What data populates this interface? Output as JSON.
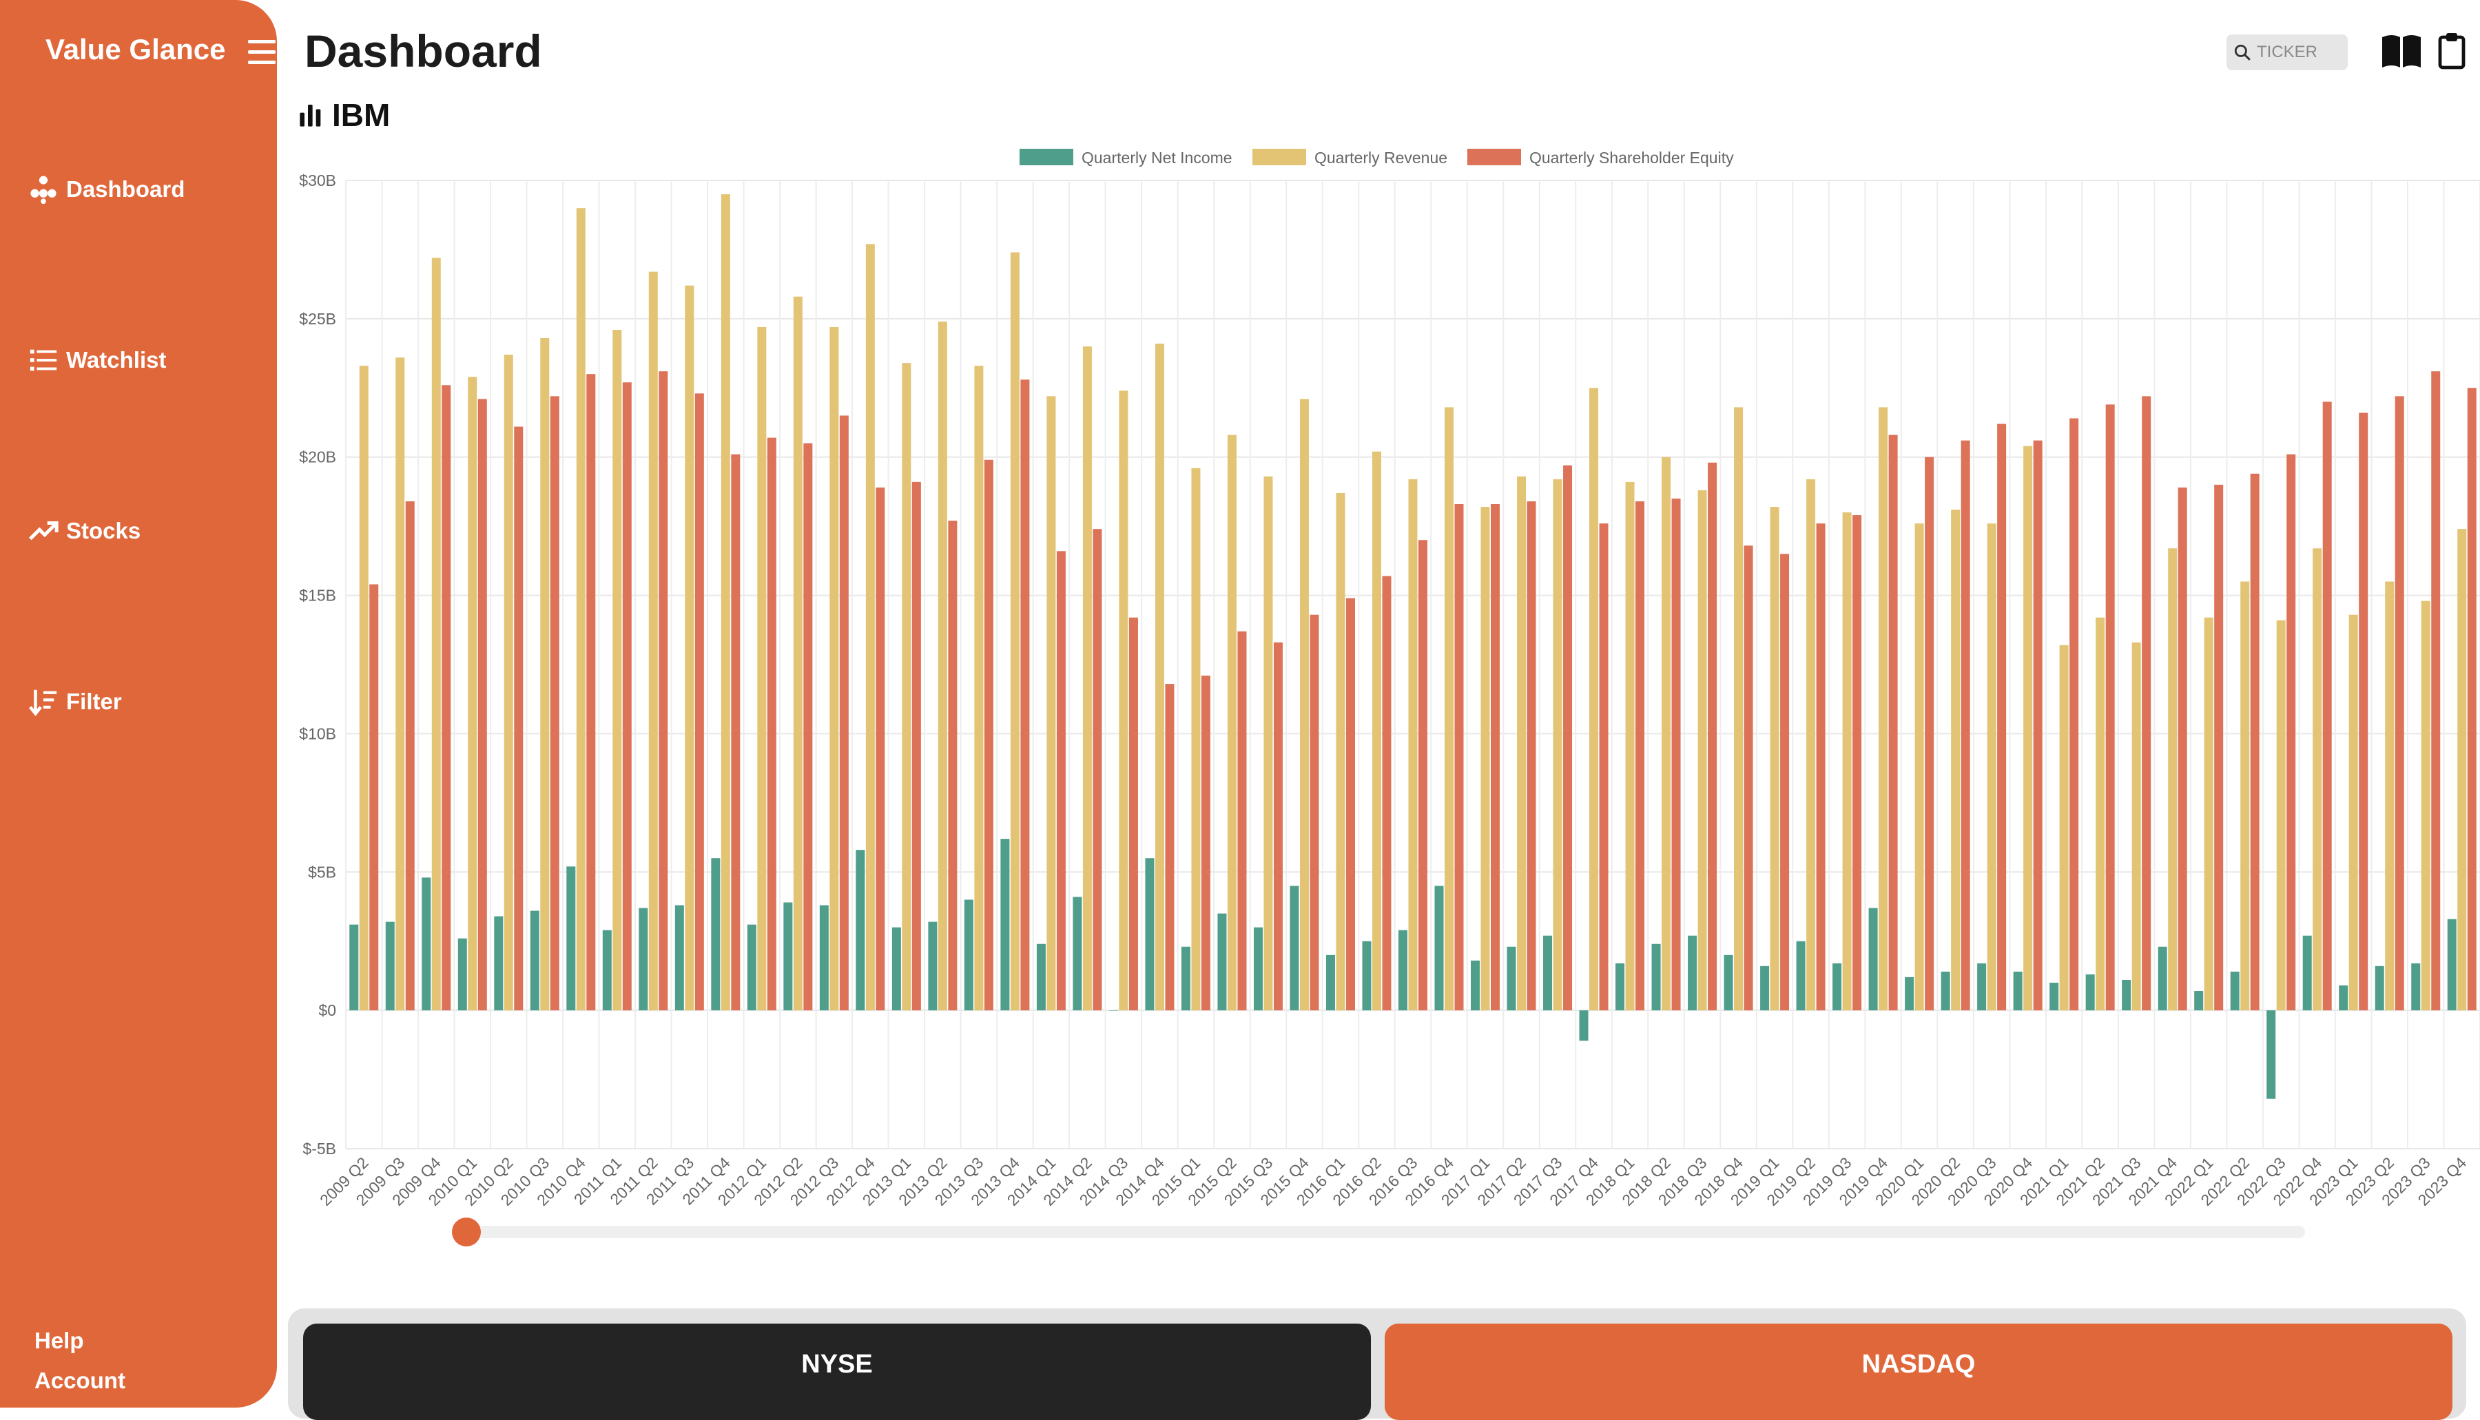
{
  "app": {
    "brand": "Value Glance"
  },
  "sidebar": {
    "items": [
      {
        "label": "Dashboard",
        "icon": "dashboard-icon"
      },
      {
        "label": "Watchlist",
        "icon": "list-icon"
      },
      {
        "label": "Stocks",
        "icon": "trend-up-icon"
      },
      {
        "label": "Filter",
        "icon": "sort-filter-icon"
      }
    ],
    "footer": {
      "help": "Help",
      "account": "Account"
    }
  },
  "header": {
    "title": "Dashboard",
    "ticker": "IBM",
    "search_placeholder": "TICKER"
  },
  "exchanges": {
    "nyse": "NYSE",
    "nasdaq": "NASDAQ"
  },
  "colors": {
    "accent": "#e0673a",
    "dark": "#242424",
    "net_income": "#4f9e8c",
    "revenue": "#e3c475",
    "equity": "#dc7258"
  },
  "chart_data": {
    "type": "bar",
    "ylim": [
      -5,
      30
    ],
    "yticks": [
      "$-5B",
      "$0",
      "$5B",
      "$10B",
      "$15B",
      "$20B",
      "$25B",
      "$30B"
    ],
    "unit": "billions USD",
    "legend_position": "top-center",
    "grid": true,
    "categories": [
      "2009 Q2",
      "2009 Q3",
      "2009 Q4",
      "2010 Q1",
      "2010 Q2",
      "2010 Q3",
      "2010 Q4",
      "2011 Q1",
      "2011 Q2",
      "2011 Q3",
      "2011 Q4",
      "2012 Q1",
      "2012 Q2",
      "2012 Q3",
      "2012 Q4",
      "2013 Q1",
      "2013 Q2",
      "2013 Q3",
      "2013 Q4",
      "2014 Q1",
      "2014 Q2",
      "2014 Q3",
      "2014 Q4",
      "2015 Q1",
      "2015 Q2",
      "2015 Q3",
      "2015 Q4",
      "2016 Q1",
      "2016 Q2",
      "2016 Q3",
      "2016 Q4",
      "2017 Q1",
      "2017 Q2",
      "2017 Q3",
      "2017 Q4",
      "2018 Q1",
      "2018 Q2",
      "2018 Q3",
      "2018 Q4",
      "2019 Q1",
      "2019 Q2",
      "2019 Q3",
      "2019 Q4",
      "2020 Q1",
      "2020 Q2",
      "2020 Q3",
      "2020 Q4",
      "2021 Q1",
      "2021 Q2",
      "2021 Q3",
      "2021 Q4",
      "2022 Q1",
      "2022 Q2",
      "2022 Q3",
      "2022 Q4",
      "2023 Q1",
      "2023 Q2",
      "2023 Q3",
      "2023 Q4"
    ],
    "series": [
      {
        "name": "Quarterly Net Income",
        "values": [
          3.1,
          3.2,
          4.8,
          2.6,
          3.4,
          3.6,
          5.2,
          2.9,
          3.7,
          3.8,
          5.5,
          3.1,
          3.9,
          3.8,
          5.8,
          3.0,
          3.2,
          4.0,
          6.2,
          2.4,
          4.1,
          0.0,
          5.5,
          2.3,
          3.5,
          3.0,
          4.5,
          2.0,
          2.5,
          2.9,
          4.5,
          1.8,
          2.3,
          2.7,
          -1.1,
          1.7,
          2.4,
          2.7,
          2.0,
          1.6,
          2.5,
          1.7,
          3.7,
          1.2,
          1.4,
          1.7,
          1.4,
          1.0,
          1.3,
          1.1,
          2.3,
          0.7,
          1.4,
          -3.2,
          2.7,
          0.9,
          1.6,
          1.7,
          3.3
        ]
      },
      {
        "name": "Quarterly Revenue",
        "values": [
          23.3,
          23.6,
          27.2,
          22.9,
          23.7,
          24.3,
          29.0,
          24.6,
          26.7,
          26.2,
          29.5,
          24.7,
          25.8,
          24.7,
          27.7,
          23.4,
          24.9,
          23.3,
          27.4,
          22.2,
          24.0,
          22.4,
          24.1,
          19.6,
          20.8,
          19.3,
          22.1,
          18.7,
          20.2,
          19.2,
          21.8,
          18.2,
          19.3,
          19.2,
          22.5,
          19.1,
          20.0,
          18.8,
          21.8,
          18.2,
          19.2,
          18.0,
          21.8,
          17.6,
          18.1,
          17.6,
          20.4,
          13.2,
          14.2,
          13.3,
          16.7,
          14.2,
          15.5,
          14.1,
          16.7,
          14.3,
          15.5,
          14.8,
          17.4
        ]
      },
      {
        "name": "Quarterly Shareholder Equity",
        "values": [
          15.4,
          18.4,
          22.6,
          22.1,
          21.1,
          22.2,
          23.0,
          22.7,
          23.1,
          22.3,
          20.1,
          20.7,
          20.5,
          21.5,
          18.9,
          19.1,
          17.7,
          19.9,
          22.8,
          16.6,
          17.4,
          14.2,
          11.8,
          12.1,
          13.7,
          13.3,
          14.3,
          14.9,
          15.7,
          17.0,
          18.3,
          18.3,
          18.4,
          19.7,
          17.6,
          18.4,
          18.5,
          19.8,
          16.8,
          16.5,
          17.6,
          17.9,
          20.8,
          20.0,
          20.6,
          21.2,
          20.6,
          21.4,
          21.9,
          22.2,
          18.9,
          19.0,
          19.4,
          20.1,
          22.0,
          21.6,
          22.2,
          23.1,
          22.5
        ]
      }
    ]
  }
}
